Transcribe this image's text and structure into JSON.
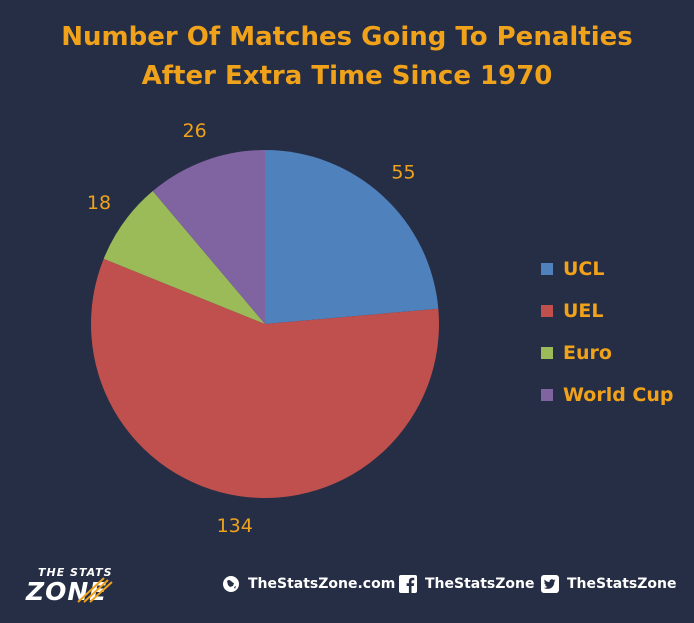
{
  "chart_data": {
    "type": "pie",
    "title_line1": "Number Of Matches Going To Penalties",
    "title_line2": "After Extra Time Since 1970",
    "categories": [
      "UCL",
      "UEL",
      "Euro",
      "World Cup"
    ],
    "values": [
      55,
      134,
      18,
      26
    ],
    "colors": [
      "#4f81bd",
      "#c0504d",
      "#9bbb59",
      "#8064a2"
    ],
    "legend_position": "right",
    "label_color": "#f0a21a"
  },
  "footer": {
    "logo_top": "THE STATS",
    "logo_main": "ZONE",
    "website": "TheStatsZone.com",
    "facebook": "TheStatsZone",
    "twitter": "TheStatsZone"
  }
}
